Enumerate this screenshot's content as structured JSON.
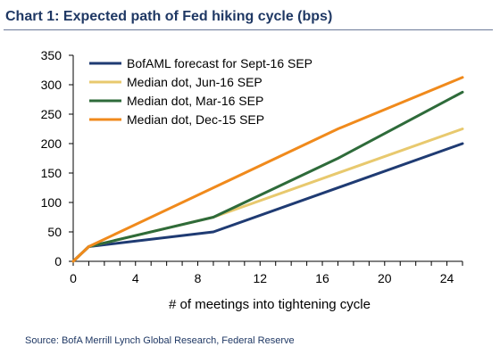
{
  "title": "Chart 1: Expected path of Fed hiking cycle (bps)",
  "source": "Source: BofA Merrill Lynch Global Research, Federal Reserve",
  "chart_data": {
    "type": "line",
    "title": "Chart 1: Expected path of Fed hiking cycle (bps)",
    "xlabel": "# of meetings into tightening cycle",
    "ylabel": "",
    "xlim": [
      0,
      25
    ],
    "ylim": [
      0,
      350
    ],
    "xticks": [
      0,
      4,
      8,
      12,
      16,
      20,
      24
    ],
    "yticks": [
      0,
      50,
      100,
      150,
      200,
      250,
      300,
      350
    ],
    "grid": false,
    "legend_position": "top-left",
    "series": [
      {
        "name": "BofAML forecast for Sept-16 SEP",
        "color": "#1f3b73",
        "x": [
          0,
          1,
          9,
          25
        ],
        "y": [
          0,
          25,
          50,
          200
        ]
      },
      {
        "name": "Median dot, Jun-16 SEP",
        "color": "#e8c96e",
        "x": [
          0,
          1,
          9,
          25
        ],
        "y": [
          0,
          25,
          75,
          225
        ]
      },
      {
        "name": "Median dot, Mar-16 SEP",
        "color": "#2e6b3a",
        "x": [
          0,
          1,
          9,
          17,
          25
        ],
        "y": [
          0,
          25,
          75,
          175,
          287.5
        ]
      },
      {
        "name": "Median dot, Dec-15 SEP",
        "color": "#f08a1c",
        "x": [
          0,
          1,
          9,
          17,
          25
        ],
        "y": [
          0,
          25,
          125,
          225,
          312.5
        ]
      }
    ]
  }
}
